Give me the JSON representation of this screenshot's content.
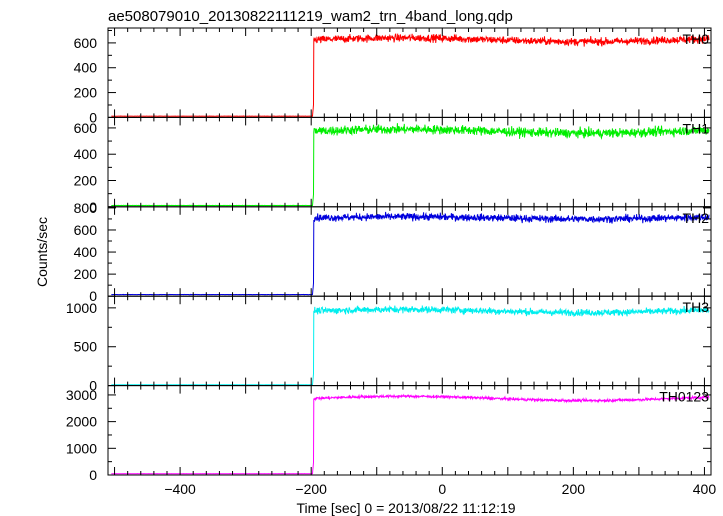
{
  "chart_data": {
    "type": "line",
    "title": "ae508079010_20130822111219_wam2_trn_4band_long.qdp",
    "xlabel": "Time [sec] 0 = 2013/08/22 11:12:19",
    "ylabel": "Counts/sec",
    "xlim": [
      -510,
      410
    ],
    "xticks": [
      -400,
      -200,
      0,
      200,
      400
    ],
    "trigger_x": -196,
    "panels": [
      {
        "name": "TH0",
        "color": "#ff0000",
        "ylim": [
          0,
          720
        ],
        "yticks": [
          0,
          200,
          400,
          600
        ],
        "pre_level": 10,
        "post_level": 625,
        "post_noise": 28,
        "drift": 15
      },
      {
        "name": "TH1",
        "color": "#00ee00",
        "ylim": [
          0,
          680
        ],
        "yticks": [
          0,
          200,
          400,
          600
        ],
        "pre_level": 10,
        "post_level": 575,
        "post_noise": 32,
        "drift": 15
      },
      {
        "name": "TH2",
        "color": "#0000dd",
        "ylim": [
          0,
          810
        ],
        "yticks": [
          0,
          200,
          400,
          600,
          800
        ],
        "pre_level": 15,
        "post_level": 710,
        "post_noise": 30,
        "drift": 10
      },
      {
        "name": "TH3",
        "color": "#00eeee",
        "ylim": [
          0,
          1150
        ],
        "yticks": [
          0,
          500,
          1000
        ],
        "pre_level": 10,
        "post_level": 960,
        "post_noise": 40,
        "drift": 20
      },
      {
        "name": "TH0123",
        "color": "#ff00ff",
        "ylim": [
          0,
          3350
        ],
        "yticks": [
          0,
          1000,
          2000,
          3000
        ],
        "pre_level": 50,
        "post_level": 2870,
        "post_noise": 45,
        "drift": 80
      }
    ]
  }
}
